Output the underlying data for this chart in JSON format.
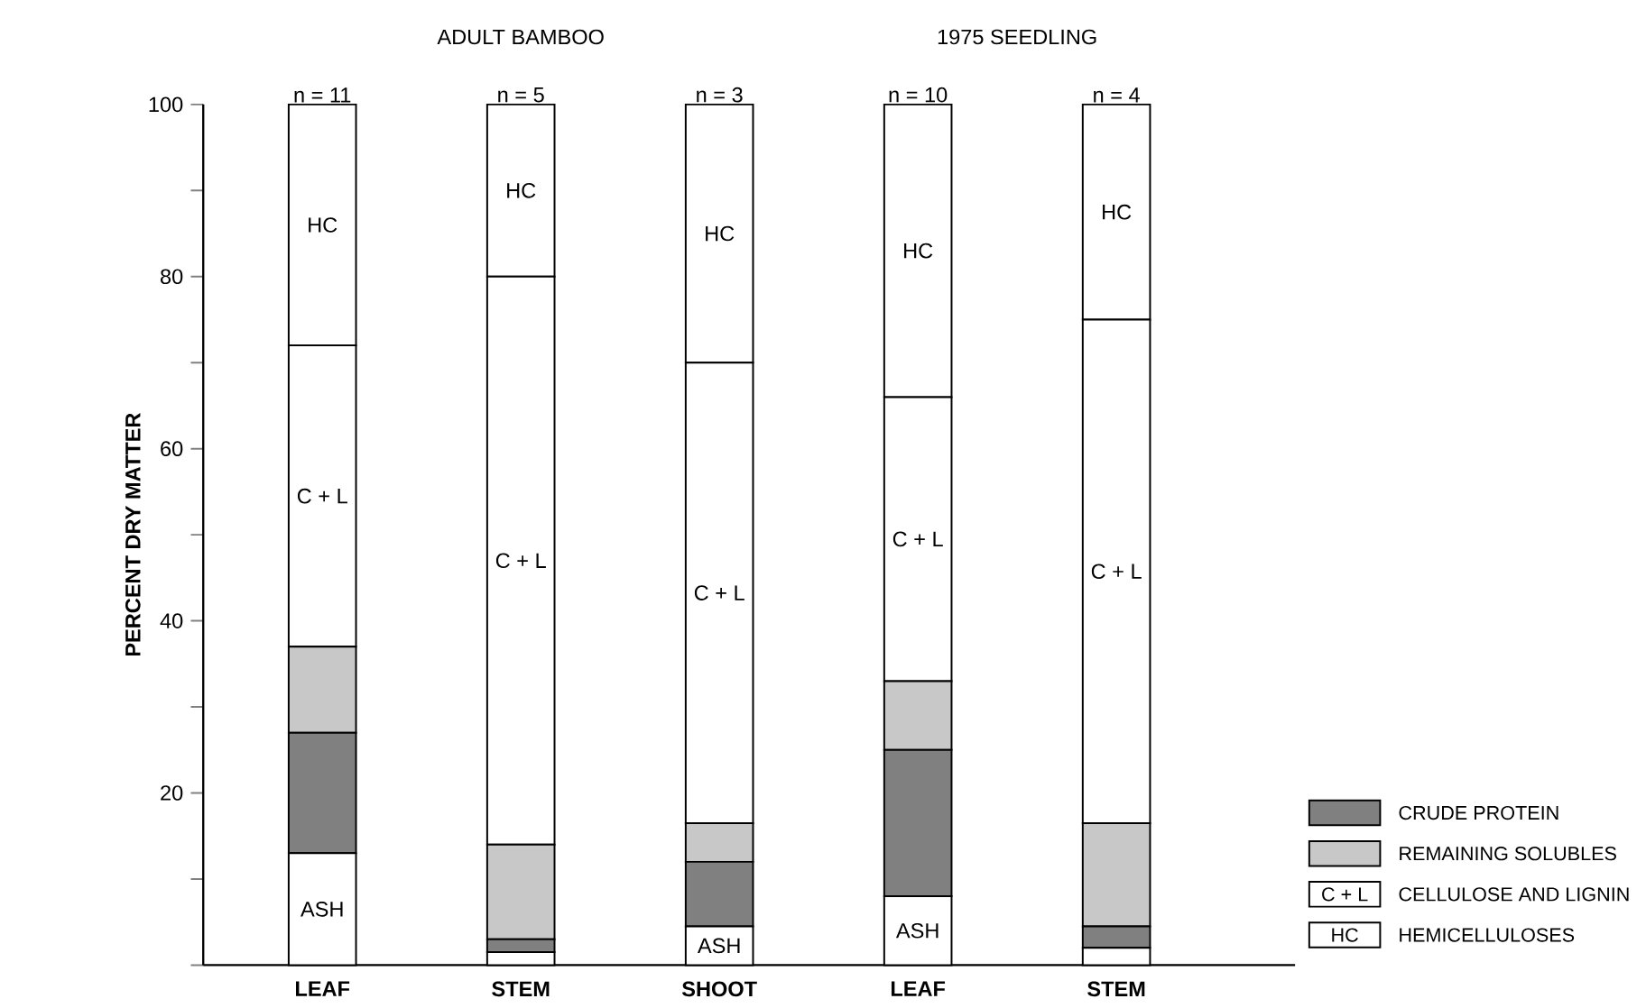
{
  "chart_data": {
    "type": "bar",
    "stacked": true,
    "ylabel": "PERCENT DRY MATTER",
    "categories": [
      "LEAF",
      "STEM",
      "SHOOT",
      "LEAF",
      "STEM"
    ],
    "annotations": [
      "ADULT BAMBOO",
      "1975 SEEDLING",
      "n = 11",
      "n = 5",
      "n = 3",
      "n = 10",
      "n = 4"
    ],
    "series": [
      {
        "color": "#ffffff",
        "values": [
          13,
          1.5,
          4.5,
          8,
          2
        ],
        "value_labels": [
          "ASH",
          null,
          "ASH",
          "ASH",
          null
        ]
      },
      {
        "name": "CRUDE PROTEIN",
        "color": "#808080",
        "values": [
          14,
          1.5,
          7.5,
          17,
          2.5
        ]
      },
      {
        "name": "REMAINING SOLUBLES",
        "color": "#c8c8c8",
        "values": [
          10,
          11,
          4.5,
          8,
          12
        ]
      },
      {
        "name": "CELLULOSE AND LIGNIN",
        "color": "#ffffff",
        "values": [
          35,
          66,
          53.5,
          33,
          58.5
        ],
        "value_labels": [
          "C + L",
          "C + L",
          "C + L",
          "C + L",
          "C + L"
        ]
      },
      {
        "name": "HEMICELLULOSES",
        "color": "#ffffff",
        "values": [
          28,
          20,
          30,
          34,
          25
        ],
        "value_labels": [
          "HC",
          "HC",
          "HC",
          "HC",
          "HC"
        ]
      }
    ],
    "ylim": [
      0,
      100
    ],
    "yticks": [
      {
        "value": 0,
        "label": null
      },
      {
        "value": 10,
        "label": null
      },
      20,
      {
        "value": 30,
        "label": null
      },
      40,
      {
        "value": 50,
        "label": null
      },
      60,
      {
        "value": 70,
        "label": null
      },
      80,
      {
        "value": 90,
        "label": null
      },
      100
    ],
    "grid": false,
    "legend": "bottom right"
  }
}
